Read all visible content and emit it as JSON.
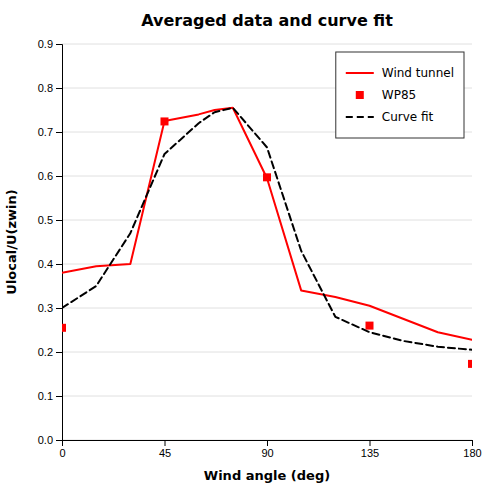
{
  "chart_data": {
    "type": "line",
    "title": "Averaged data and curve fit",
    "xlabel": "Wind angle (deg)",
    "ylabel": "Ulocal/U(zwin)",
    "xlim": [
      0,
      180
    ],
    "ylim": [
      0,
      0.9
    ],
    "xticks": [
      0,
      45,
      90,
      135,
      180
    ],
    "yticks": [
      {
        "value": 0,
        "label": "0.0"
      },
      0.1,
      0.2,
      0.3,
      0.4,
      0.5,
      0.6,
      0.7,
      0.8,
      0.9
    ],
    "grid": true,
    "legend": "upper right",
    "series": [
      {
        "name": "Wind tunnel",
        "type": "line",
        "color": "#ff0000",
        "line_style": "solid",
        "x": [
          0,
          15,
          30,
          45,
          60,
          67,
          75,
          90,
          105,
          120,
          135,
          150,
          165,
          180
        ],
        "values": [
          0.38,
          0.395,
          0.4,
          0.725,
          0.74,
          0.75,
          0.755,
          0.595,
          0.34,
          0.325,
          0.305,
          0.275,
          0.245,
          0.228
        ]
      },
      {
        "name": "WP85",
        "type": "scatter",
        "color": "#ff0000",
        "marker": "square",
        "x": [
          0,
          45,
          90,
          135,
          180
        ],
        "values": [
          0.255,
          0.724,
          0.597,
          0.26,
          0.173
        ]
      },
      {
        "name": "Curve fit",
        "type": "line",
        "color": "#000000",
        "line_style": "dashed",
        "x": [
          0,
          15,
          30,
          45,
          60,
          67,
          75,
          90,
          105,
          120,
          135,
          150,
          165,
          180
        ],
        "values": [
          0.3,
          0.35,
          0.47,
          0.65,
          0.72,
          0.745,
          0.755,
          0.665,
          0.43,
          0.28,
          0.245,
          0.225,
          0.212,
          0.205
        ]
      }
    ]
  }
}
